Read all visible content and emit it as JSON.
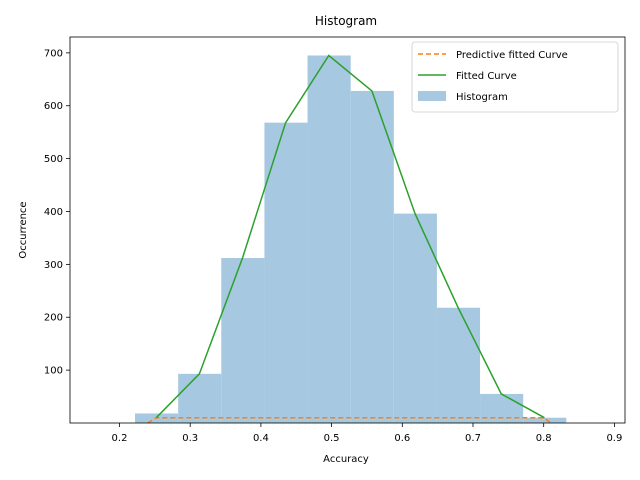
{
  "chart_data": {
    "type": "bar",
    "title": "Histogram",
    "xlabel": "Accuracy",
    "ylabel": "Occurrence",
    "xlim": [
      0.13,
      0.915
    ],
    "ylim": [
      0,
      730
    ],
    "xticks": [
      0.2,
      0.3,
      0.4,
      0.5,
      0.6,
      0.7,
      0.8,
      0.9
    ],
    "xtick_labels": [
      "0.2",
      "0.3",
      "0.4",
      "0.5",
      "0.6",
      "0.7",
      "0.8",
      "0.9"
    ],
    "yticks": [
      100,
      200,
      300,
      400,
      500,
      600,
      700
    ],
    "ytick_labels": [
      "100",
      "200",
      "300",
      "400",
      "500",
      "600",
      "700"
    ],
    "grid": false,
    "legend_position": "top-right",
    "histogram": {
      "name": "Histogram",
      "color": "#a6c8e0",
      "bin_edges": [
        0.222,
        0.283,
        0.344,
        0.405,
        0.466,
        0.527,
        0.588,
        0.649,
        0.71,
        0.771,
        0.832
      ],
      "values": [
        18,
        93,
        312,
        568,
        695,
        628,
        396,
        218,
        55,
        10
      ]
    },
    "series": [
      {
        "name": "Predictive fitted Curve",
        "style": "dashed",
        "color": "#ff7f0e",
        "x": [
          0.24,
          0.252,
          0.8,
          0.81
        ],
        "y": [
          0,
          10,
          10,
          0
        ]
      },
      {
        "name": "Fitted Curve",
        "style": "solid",
        "color": "#2ca02c",
        "x": [
          0.252,
          0.313,
          0.374,
          0.435,
          0.496,
          0.557,
          0.618,
          0.679,
          0.74,
          0.801
        ],
        "y": [
          10,
          93,
          312,
          568,
          695,
          628,
          396,
          218,
          55,
          10
        ]
      }
    ],
    "legend": [
      "Predictive fitted Curve",
      "Fitted Curve",
      "Histogram"
    ]
  }
}
